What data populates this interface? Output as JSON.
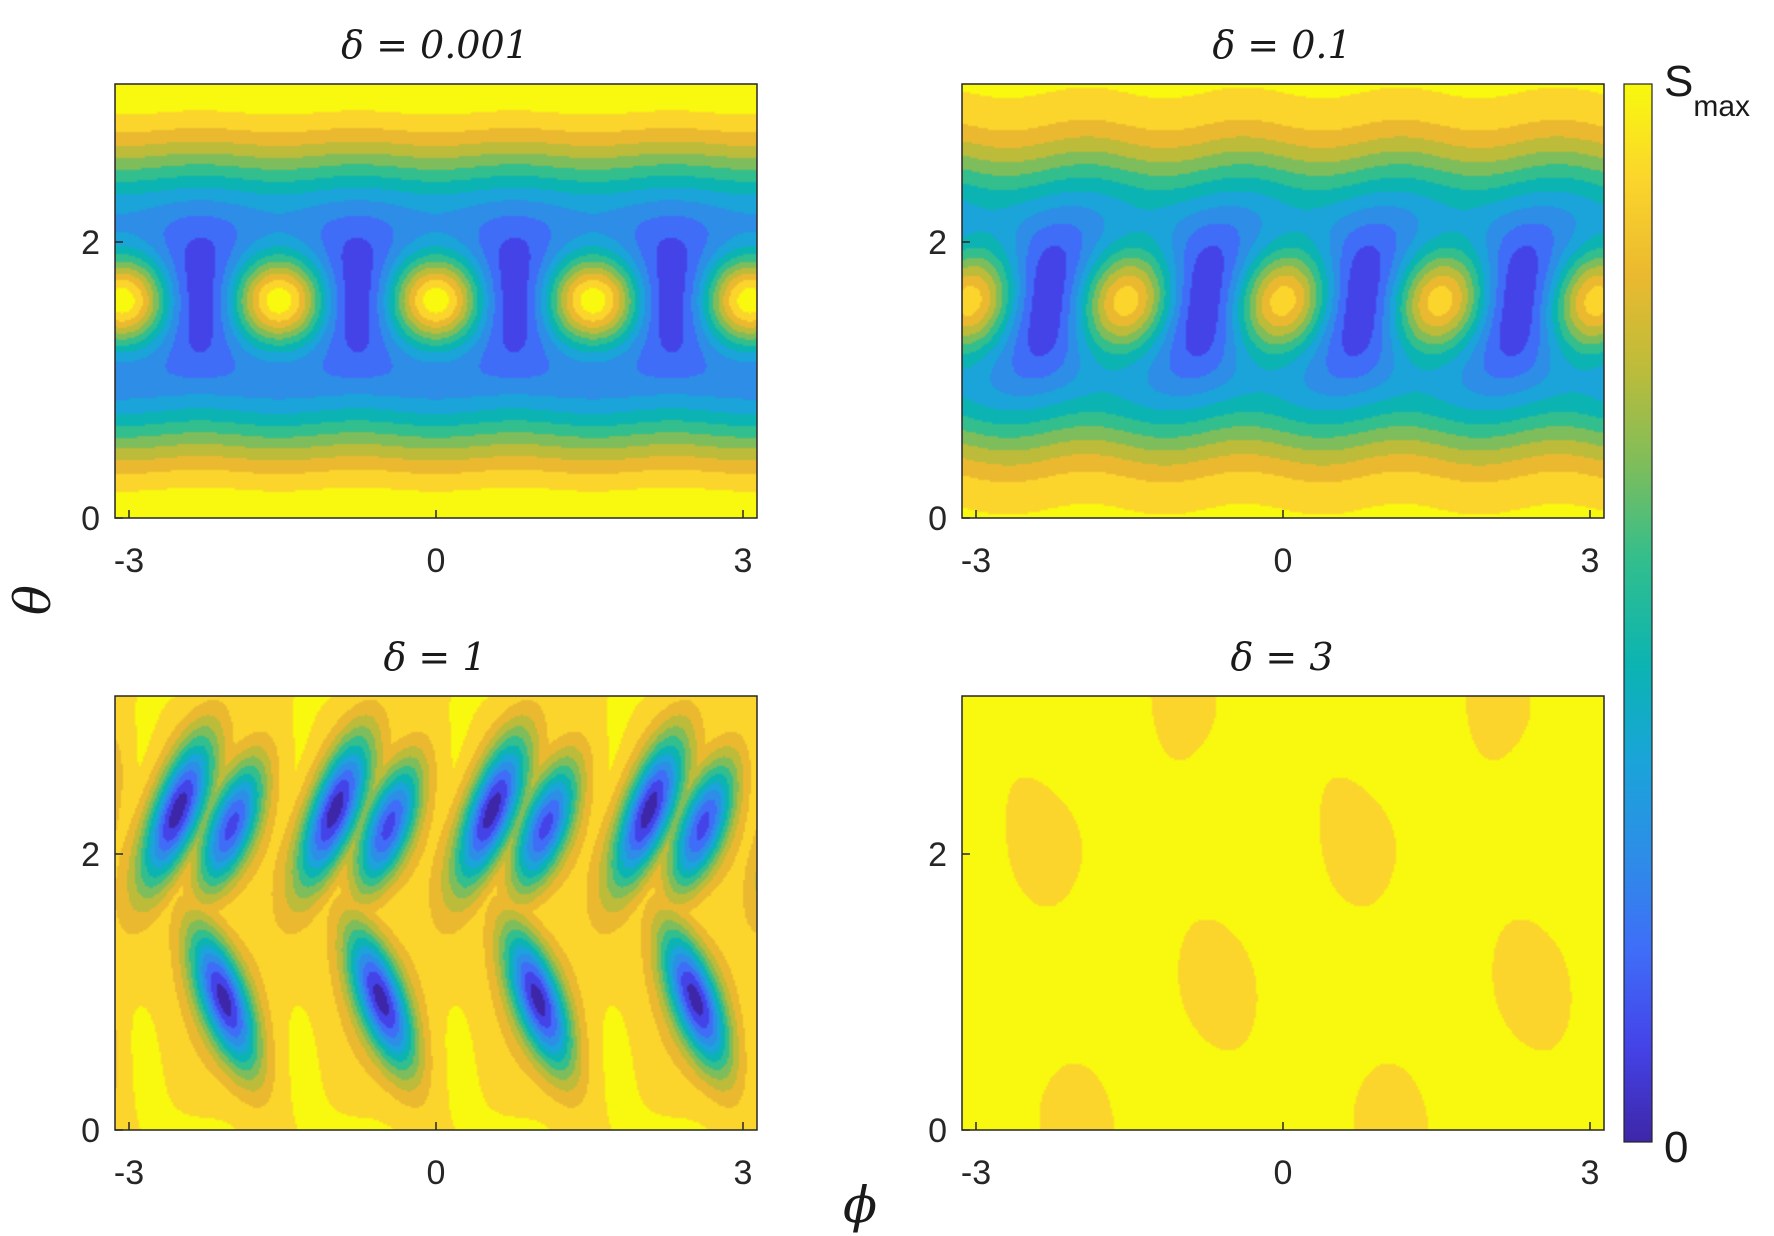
{
  "chart_data": {
    "type": "heatmap",
    "colormap": "parula",
    "levels": 12,
    "xlabel": "ϕ",
    "ylabel": "θ",
    "colorbar": {
      "top_label": "S",
      "top_label_sub": "max",
      "bottom_label": "0"
    },
    "panels": [
      {
        "title": "δ = 0.001",
        "delta": 0.001,
        "xlim": [
          -3.2,
          3.2
        ],
        "ylim": [
          0,
          3.1416
        ],
        "xticks": [
          -3,
          0,
          3
        ],
        "yticks": [
          0,
          2
        ],
        "xtick_labels": [
          "-3",
          "0",
          "3"
        ],
        "ytick_labels": [
          "0",
          "2"
        ]
      },
      {
        "title": "δ = 0.1",
        "delta": 0.1,
        "xlim": [
          -3.2,
          3.2
        ],
        "ylim": [
          0,
          3.1416
        ],
        "xticks": [
          -3,
          0,
          3
        ],
        "yticks": [
          0,
          2
        ],
        "xtick_labels": [
          "-3",
          "0",
          "3"
        ],
        "ytick_labels": [
          "0",
          "2"
        ]
      },
      {
        "title": "δ = 1",
        "delta": 1,
        "xlim": [
          -3.2,
          3.2
        ],
        "ylim": [
          0,
          3.1416
        ],
        "xticks": [
          -3,
          0,
          3
        ],
        "yticks": [
          0,
          2
        ],
        "xtick_labels": [
          "-3",
          "0",
          "3"
        ],
        "ytick_labels": [
          "0",
          "2"
        ]
      },
      {
        "title": "δ = 3",
        "delta": 3,
        "xlim": [
          -3.2,
          3.2
        ],
        "ylim": [
          0,
          3.1416
        ],
        "xticks": [
          -3,
          0,
          3
        ],
        "yticks": [
          0,
          2
        ],
        "xtick_labels": [
          "-3",
          "0",
          "3"
        ],
        "ytick_labels": [
          "0",
          "2"
        ]
      }
    ],
    "colormap_stops": [
      "#3e26a8",
      "#4443e8",
      "#3f6df8",
      "#2d8de7",
      "#1aa4d9",
      "#0bb4b2",
      "#32be8d",
      "#7ebd5b",
      "#bcbc3a",
      "#ebb92f",
      "#fbd52c",
      "#f8f90e"
    ]
  }
}
